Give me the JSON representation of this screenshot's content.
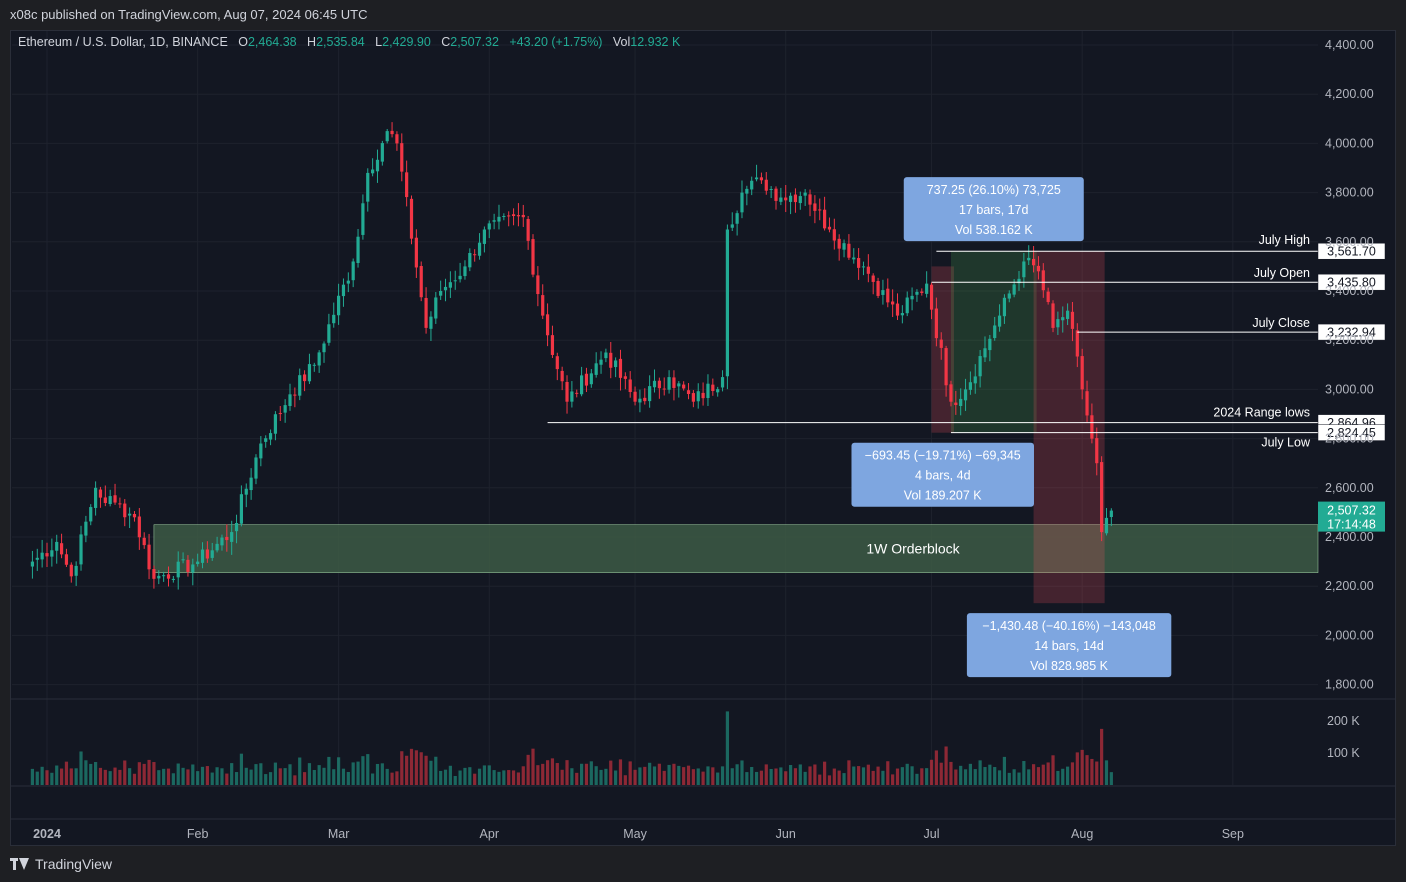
{
  "banner": "x08c published on TradingView.com, Aug 07, 2024 06:45 UTC",
  "legend": {
    "symbol": "Ethereum / U.S. Dollar, 1D, BINANCE",
    "o_label": "O",
    "o": "2,464.38",
    "h_label": "H",
    "h": "2,535.84",
    "l_label": "L",
    "l": "2,429.90",
    "c_label": "C",
    "c": "2,507.32",
    "change": "+43.20 (+1.75%)",
    "vol_label": "Vol",
    "vol": "12.932 K"
  },
  "footer": {
    "brand": "TradingView"
  },
  "colors": {
    "up": "#22ab94",
    "down": "#f23645",
    "background": "#131722",
    "orderblock": "#3d5a45",
    "measure_label": "#7ea6e0"
  },
  "chart_data": {
    "type": "candlestick",
    "symbol": "ETHUSD",
    "interval": "1D",
    "ylim": [
      1750,
      4500
    ],
    "y_ticks": [
      "4,400.00",
      "4,200.00",
      "4,000.00",
      "3,800.00",
      "3,600.00",
      "3,400.00",
      "3,200.00",
      "3,000.00",
      "2,800.00",
      "2,600.00",
      "2,400.00",
      "2,200.00",
      "2,000.00",
      "1,800.00"
    ],
    "y_tick_values": [
      4400,
      4200,
      4000,
      3800,
      3600,
      3400,
      3200,
      3000,
      2800,
      2600,
      2400,
      2200,
      2000,
      1800
    ],
    "x_ticks": [
      "2024",
      "Feb",
      "Mar",
      "Apr",
      "May",
      "Jun",
      "Jul",
      "Aug",
      "Sep"
    ],
    "x_tick_dates": [
      "2024-01-01",
      "2024-02-01",
      "2024-03-01",
      "2024-04-01",
      "2024-05-01",
      "2024-06-01",
      "2024-07-01",
      "2024-08-01",
      "2024-09-01"
    ],
    "volume_ticks": [
      "200 K",
      "100 K"
    ],
    "volume_tick_values": [
      200000,
      100000
    ],
    "anchors": [
      [
        "2023-12-29",
        2300
      ],
      [
        "2024-01-03",
        2380
      ],
      [
        "2024-01-06",
        2240
      ],
      [
        "2024-01-11",
        2600
      ],
      [
        "2024-01-12",
        2560
      ],
      [
        "2024-01-15",
        2540
      ],
      [
        "2024-01-19",
        2480
      ],
      [
        "2024-01-23",
        2230
      ],
      [
        "2024-02-01",
        2300
      ],
      [
        "2024-02-08",
        2420
      ],
      [
        "2024-02-14",
        2780
      ],
      [
        "2024-02-20",
        2980
      ],
      [
        "2024-02-25",
        3100
      ],
      [
        "2024-03-04",
        3520
      ],
      [
        "2024-03-07",
        3880
      ],
      [
        "2024-03-11",
        4050
      ],
      [
        "2024-03-13",
        4000
      ],
      [
        "2024-03-19",
        3250
      ],
      [
        "2024-03-22",
        3400
      ],
      [
        "2024-03-27",
        3500
      ],
      [
        "2024-03-31",
        3650
      ],
      [
        "2024-04-08",
        3700
      ],
      [
        "2024-04-12",
        3300
      ],
      [
        "2024-04-17",
        2950
      ],
      [
        "2024-04-25",
        3150
      ],
      [
        "2024-05-01",
        2950
      ],
      [
        "2024-05-08",
        3050
      ],
      [
        "2024-05-13",
        2950
      ],
      [
        "2024-05-19",
        3050
      ],
      [
        "2024-05-20",
        3650
      ],
      [
        "2024-05-23",
        3800
      ],
      [
        "2024-05-27",
        3850
      ],
      [
        "2024-05-31",
        3780
      ],
      [
        "2024-06-05",
        3800
      ],
      [
        "2024-06-10",
        3650
      ],
      [
        "2024-06-17",
        3500
      ],
      [
        "2024-06-24",
        3300
      ],
      [
        "2024-06-30",
        3430
      ],
      [
        "2024-07-05",
        2950
      ],
      [
        "2024-07-08",
        3000
      ],
      [
        "2024-07-15",
        3300
      ],
      [
        "2024-07-20",
        3520
      ],
      [
        "2024-07-23",
        3480
      ],
      [
        "2024-07-26",
        3250
      ],
      [
        "2024-07-29",
        3320
      ],
      [
        "2024-08-01",
        3000
      ],
      [
        "2024-08-04",
        2700
      ],
      [
        "2024-08-05",
        2420
      ],
      [
        "2024-08-07",
        2507
      ]
    ],
    "last_price": {
      "value": 2507.32,
      "label": "2,507.32",
      "countdown": "17:14:48"
    },
    "levels": [
      {
        "name": "July High",
        "value": 3561.7,
        "label": "3,561.70",
        "from": "2024-07-02"
      },
      {
        "name": "July Open",
        "value": 3435.8,
        "label": "3,435.80",
        "from": "2024-07-01"
      },
      {
        "name": "July Close",
        "value": 3232.94,
        "label": "3,232.94",
        "from": "2024-07-31"
      },
      {
        "name": "2024 Range lows",
        "value": 2864.96,
        "label": "2,864.96",
        "from": "2024-04-13"
      },
      {
        "name": "July Low",
        "value": 2824.45,
        "label": "2,824.45",
        "from": "2024-07-05"
      }
    ],
    "orderblock": {
      "label": "1W Orderblock",
      "from": "2024-01-23",
      "to": "2024-09-30",
      "top": 2450,
      "bottom": 2255
    },
    "measures": [
      {
        "from": "2024-07-01",
        "to": "2024-07-05",
        "top": 3500,
        "bottom": 2824,
        "type": "down",
        "lines": [
          "−693.45 (−19.71%) −69,345",
          "4 bars, 4d",
          "Vol 189.207 K"
        ],
        "label_pos": "below"
      },
      {
        "from": "2024-07-05",
        "to": "2024-07-22",
        "top": 3562,
        "bottom": 2824,
        "type": "up",
        "lines": [
          "737.25 (26.10%) 73,725",
          "17 bars, 17d",
          "Vol 538.162 K"
        ],
        "label_pos": "above"
      },
      {
        "from": "2024-07-22",
        "to": "2024-08-05",
        "top": 3562,
        "bottom": 2131,
        "type": "down",
        "lines": [
          "−1,430.48 (−40.16%) −143,048",
          "14 bars, 14d",
          "Vol 828.985 K"
        ],
        "label_pos": "below"
      }
    ]
  }
}
